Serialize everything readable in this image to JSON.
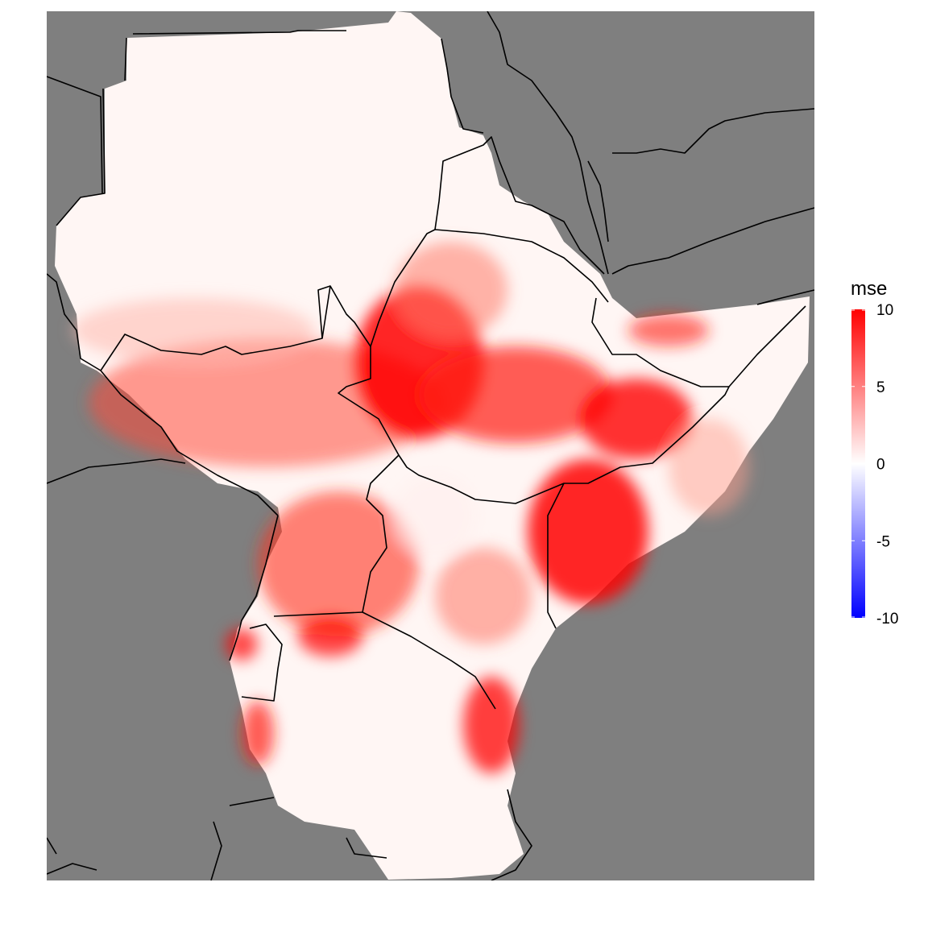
{
  "map": {
    "variable": "mse",
    "background_color": "#7f7f7f",
    "border_color": "#000000"
  },
  "legend": {
    "title": "mse",
    "ticks": [
      {
        "value": 10,
        "label": "10"
      },
      {
        "value": 5,
        "label": "5"
      },
      {
        "value": 0,
        "label": "0"
      },
      {
        "value": -5,
        "label": "-5"
      },
      {
        "value": -10,
        "label": "-10"
      }
    ],
    "range": [
      -10,
      10
    ],
    "colors": {
      "low": "#0000ff",
      "mid": "#ffffff",
      "high": "#ff0000"
    }
  }
}
